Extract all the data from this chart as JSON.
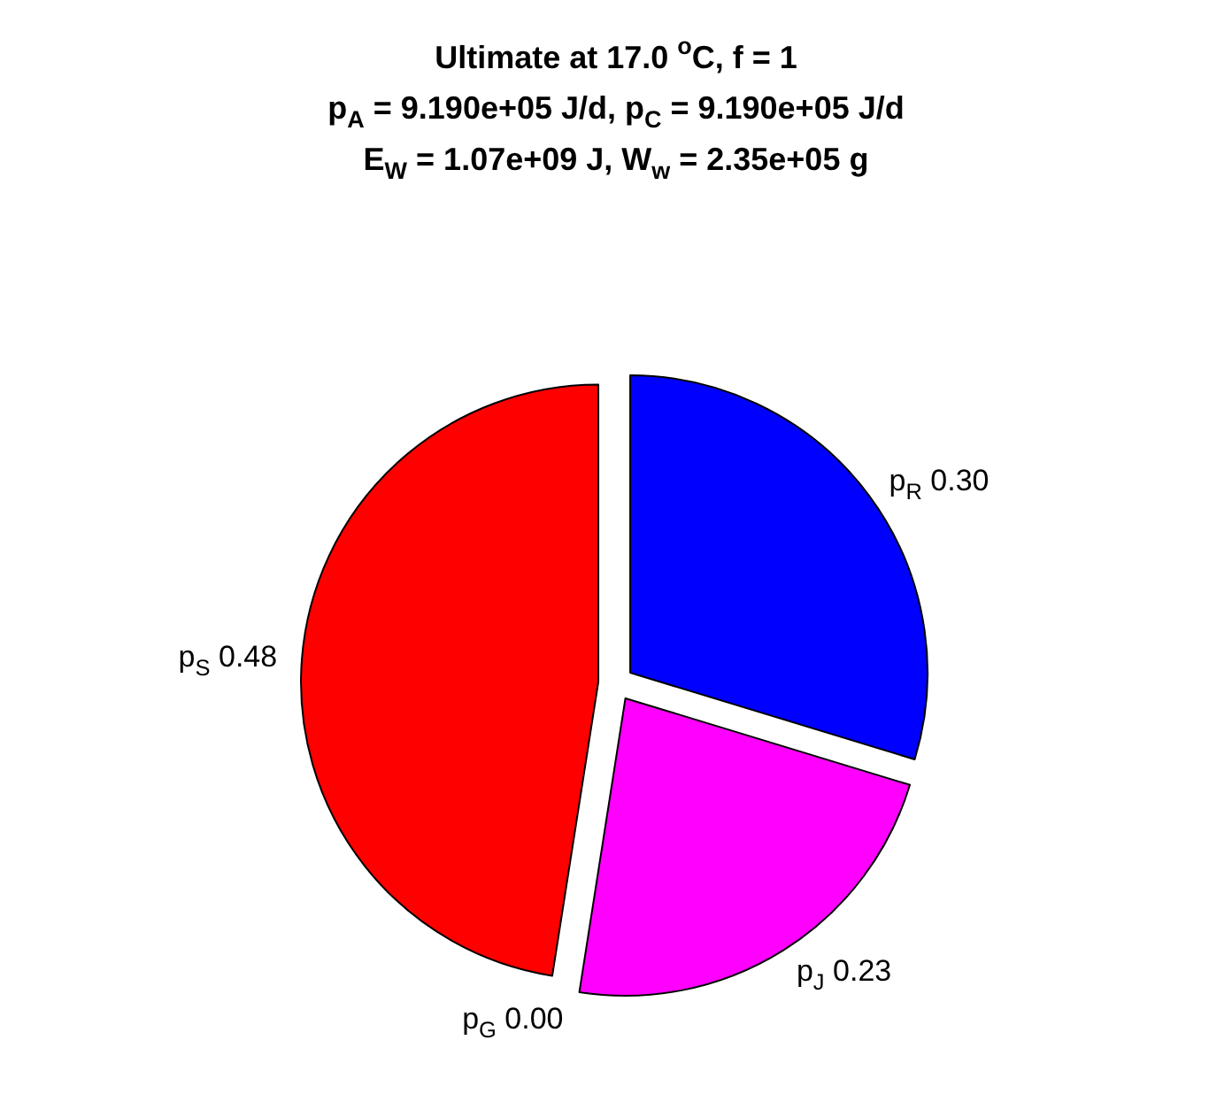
{
  "chart_data": {
    "type": "pie",
    "title": "Ultimate at 17.0 $^{o}$C, f = 1\np$_{A}$ = 9.190e+05 J/d, p$_{C}$ = 9.190e+05 J/d\nE$_{W}$ = 1.07e+09 J, W$_{w}$ = 2.35e+05 g",
    "categories": [
      "p$_{R}$",
      "p$_{J}$",
      "p$_{G}$",
      "p$_{S}$"
    ],
    "values": [
      0.3,
      0.23,
      0.0,
      0.48
    ],
    "value_labels": [
      "0.30",
      "0.23",
      "0.00",
      "0.48"
    ],
    "colors": [
      "#0000ff",
      "#ff00ff",
      null,
      "#ff0000"
    ],
    "legend": false
  }
}
